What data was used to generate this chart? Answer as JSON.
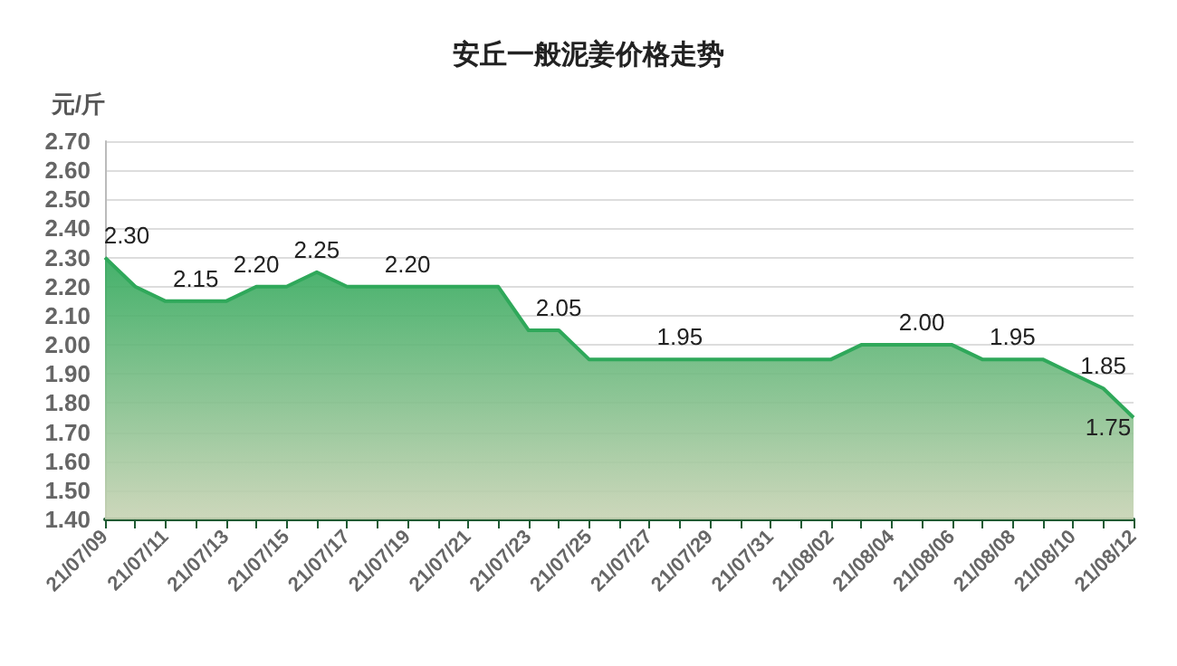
{
  "chart_data": {
    "type": "area",
    "title": "安丘一般泥姜价格走势",
    "ylabel": "元/斤",
    "categories": [
      "21/07/09",
      null,
      "21/07/11",
      null,
      "21/07/13",
      null,
      "21/07/15",
      null,
      "21/07/17",
      null,
      "21/07/19",
      null,
      "21/07/21",
      null,
      "21/07/23",
      null,
      "21/07/25",
      null,
      "21/07/27",
      null,
      "21/07/29",
      null,
      "21/07/31",
      null,
      "21/08/02",
      null,
      "21/08/04",
      null,
      "21/08/06",
      null,
      "21/08/08",
      null,
      "21/08/10",
      null,
      "21/08/12"
    ],
    "series": [
      {
        "color": "#2fa85a",
        "values": [
          2.3,
          2.2,
          2.15,
          2.15,
          2.15,
          2.2,
          2.2,
          2.25,
          2.2,
          2.2,
          2.2,
          2.2,
          2.2,
          2.2,
          2.05,
          2.05,
          1.95,
          1.95,
          1.95,
          1.95,
          1.95,
          1.95,
          1.95,
          1.95,
          1.95,
          2.0,
          2.0,
          2.0,
          2.0,
          1.95,
          1.95,
          1.95,
          1.9,
          1.85,
          1.75
        ],
        "value_labels": [
          "2.30",
          null,
          null,
          "2.15",
          null,
          "2.20",
          null,
          "2.25",
          null,
          null,
          "2.20",
          null,
          null,
          null,
          null,
          "2.05",
          null,
          null,
          null,
          "1.95",
          null,
          null,
          null,
          null,
          null,
          null,
          null,
          "2.00",
          null,
          null,
          "1.95",
          null,
          null,
          "1.85",
          "1.75"
        ]
      }
    ],
    "ylim": [
      1.4,
      2.7
    ],
    "yticks": [
      {
        "value": 1.4,
        "label": "1.40"
      },
      {
        "value": 1.5,
        "label": "1.50"
      },
      {
        "value": 1.6,
        "label": "1.60"
      },
      {
        "value": 1.7,
        "label": "1.70"
      },
      {
        "value": 1.8,
        "label": "1.80"
      },
      {
        "value": 1.9,
        "label": "1.90"
      },
      {
        "value": 2.0,
        "label": "2.00"
      },
      {
        "value": 2.1,
        "label": "2.10"
      },
      {
        "value": 2.2,
        "label": "2.20"
      },
      {
        "value": 2.3,
        "label": "2.30"
      },
      {
        "value": 2.4,
        "label": "2.40"
      },
      {
        "value": 2.5,
        "label": "2.50"
      },
      {
        "value": 2.6,
        "label": "2.60"
      },
      {
        "value": 2.7,
        "label": "2.70"
      }
    ],
    "grid": "y",
    "marker": "none"
  }
}
